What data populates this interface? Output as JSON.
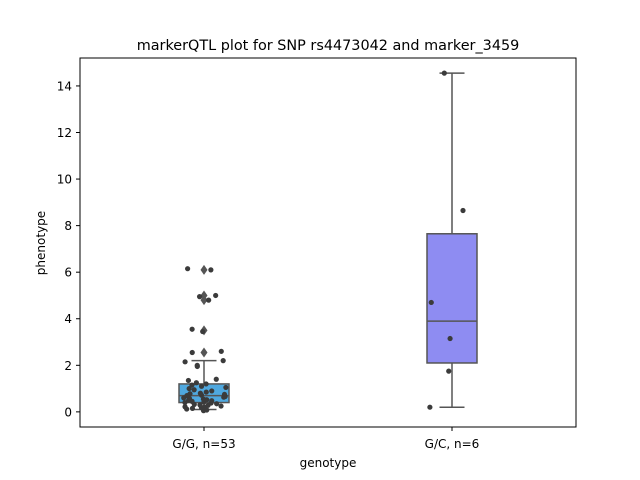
{
  "chart_data": {
    "type": "box",
    "title": "markerQTL plot for SNP rs4473042 and marker_3459",
    "xlabel": "genotype",
    "ylabel": "phenotype",
    "ylim": [
      -0.65,
      15.2
    ],
    "yticks": [
      0,
      2,
      4,
      6,
      8,
      10,
      12,
      14
    ],
    "grid": false,
    "categories": [
      "G/G, n=53",
      "G/C, n=6"
    ],
    "colors": [
      "#4FA8DF",
      "#8E8CF2"
    ],
    "boxes": [
      {
        "category": "G/G, n=53",
        "whisker_low": 0.1,
        "q1": 0.4,
        "median": 0.7,
        "q3": 1.2,
        "whisker_high": 2.2,
        "outliers": [
          2.55,
          3.5,
          4.8,
          5.0,
          6.1
        ],
        "points": [
          0.05,
          0.08,
          0.12,
          0.15,
          0.18,
          0.2,
          0.22,
          0.25,
          0.28,
          0.3,
          0.32,
          0.35,
          0.38,
          0.4,
          0.42,
          0.45,
          0.48,
          0.5,
          0.52,
          0.55,
          0.58,
          0.6,
          0.63,
          0.66,
          0.7,
          0.72,
          0.75,
          0.78,
          0.8,
          0.85,
          0.9,
          0.95,
          1.0,
          1.05,
          1.1,
          1.15,
          1.2,
          1.25,
          1.35,
          1.4,
          1.95,
          2.0,
          2.15,
          2.2,
          2.55,
          2.6,
          3.45,
          3.55,
          4.8,
          4.95,
          5.0,
          6.1,
          6.15
        ]
      },
      {
        "category": "G/C, n=6",
        "whisker_low": 0.2,
        "q1": 2.1,
        "median": 3.9,
        "q3": 7.65,
        "whisker_high": 14.55,
        "outliers": [],
        "points": [
          0.2,
          1.75,
          3.15,
          4.7,
          8.65,
          14.55
        ]
      }
    ]
  }
}
